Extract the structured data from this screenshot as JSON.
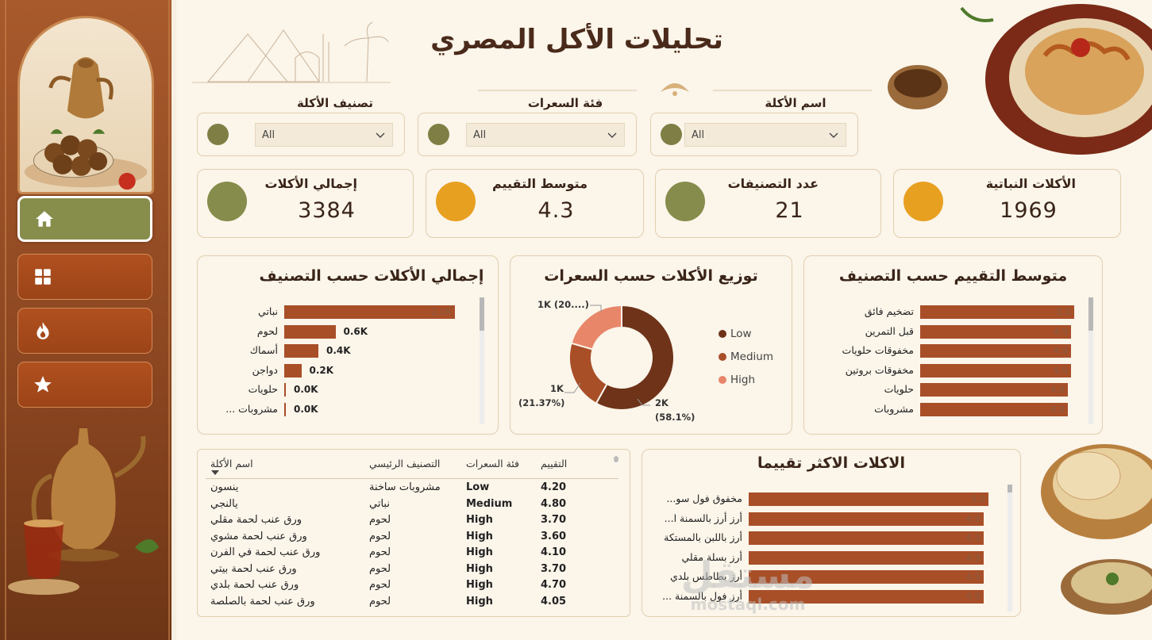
{
  "title": "تحليلات الأكل المصري",
  "filters": [
    {
      "label": "اسم الأكلة",
      "value": "All"
    },
    {
      "label": "فئة السعرات",
      "value": "All"
    },
    {
      "label": "تصنيف الأكلة",
      "value": "All"
    }
  ],
  "kpis": {
    "plant": {
      "label": "الأكلات النباتية",
      "value": "1969",
      "color": "#e8a020"
    },
    "categories": {
      "label": "عدد التصنيفات",
      "value": "21",
      "color": "#868c4b"
    },
    "rating": {
      "label": "متوسط التقييم",
      "value": "4.3",
      "color": "#e8a020"
    },
    "total": {
      "label": "إجمالي الأكلات",
      "value": "3384",
      "color": "#868c4b"
    }
  },
  "nav": [
    "home-icon",
    "grid-icon",
    "fire-icon",
    "star-icon"
  ],
  "chart_data": [
    {
      "type": "bar",
      "title": "متوسط التقييم حسب التصنيف",
      "categories": [
        "تضخيم فائق",
        "قبل التمرين",
        "مخفوقات حلويات",
        "مخفوقات بروتين",
        "حلويات",
        "مشروبات"
      ],
      "values": [
        5.0,
        4.9,
        4.9,
        4.9,
        4.8,
        4.8
      ],
      "labels": [
        "5.0",
        "4.9",
        "4.9",
        "4.9",
        "4.8",
        "4.8"
      ],
      "xlim": [
        0,
        5.0
      ]
    },
    {
      "type": "pie",
      "title": "توزيع الأكلات حسب السعرات",
      "categories": [
        "Low",
        "Medium",
        "High"
      ],
      "values": [
        58.1,
        21.37,
        20.53
      ],
      "colors": [
        "#6e3319",
        "#a84f28",
        "#e8866a"
      ],
      "labels": [
        "2K",
        "(58.1%)",
        "1K",
        "(21.37%)",
        "1K (20....)"
      ]
    },
    {
      "type": "bar",
      "title": "إجمالي الأكلات حسب التصنيف",
      "categories": [
        "نباتي",
        "لحوم",
        "أسماك",
        "دواجن",
        "حلويات",
        "... مشروبات"
      ],
      "values": [
        2.0,
        0.6,
        0.4,
        0.2,
        0.0,
        0.0
      ],
      "labels": [
        "2.0K",
        "0.6K",
        "0.4K",
        "0.2K",
        "0.0K",
        "0.0K"
      ],
      "xlim": [
        0,
        2.0
      ]
    },
    {
      "type": "bar",
      "title": "الاكلات الاكثر تقييما",
      "categories": [
        "...مخفوق فول سو",
        "...أرز أرز بالسمنة ا",
        "أرز باللبن بالمستكة",
        "أرز بسلة مقلي",
        "أرز بطاطس بلدي",
        "... أرز فول بالسمنة"
      ],
      "values": [
        5.0,
        4.9,
        4.9,
        4.9,
        4.9,
        4.9
      ],
      "labels": [
        "5.0",
        "4.9",
        "4.9",
        "4.9",
        "4.9",
        "4.9"
      ],
      "xlim": [
        0,
        5.0
      ]
    }
  ],
  "table": {
    "headers": {
      "name": "اسم الأكلة",
      "category": "التصنيف الرئيسي",
      "calories": "فئة السعرات",
      "rating": "التقييم"
    },
    "rows": [
      {
        "name": "ينسون",
        "category": "مشروبات ساخنة",
        "calories": "Low",
        "rating": "4.20"
      },
      {
        "name": "يالنجي",
        "category": "نباتي",
        "calories": "Medium",
        "rating": "4.80"
      },
      {
        "name": "ورق عنب لحمة مقلي",
        "category": "لحوم",
        "calories": "High",
        "rating": "3.70"
      },
      {
        "name": "ورق عنب لحمة مشوي",
        "category": "لحوم",
        "calories": "High",
        "rating": "3.60"
      },
      {
        "name": "ورق عنب لحمة في الفرن",
        "category": "لحوم",
        "calories": "High",
        "rating": "4.10"
      },
      {
        "name": "ورق عنب لحمة بيتي",
        "category": "لحوم",
        "calories": "High",
        "rating": "3.70"
      },
      {
        "name": "ورق عنب لحمة بلدي",
        "category": "لحوم",
        "calories": "High",
        "rating": "4.70"
      },
      {
        "name": "ورق عنب لحمة بالصلصة",
        "category": "لحوم",
        "calories": "High",
        "rating": "4.05"
      }
    ]
  },
  "watermark": {
    "line1": "مستقل",
    "line2": "mostaql.com"
  }
}
